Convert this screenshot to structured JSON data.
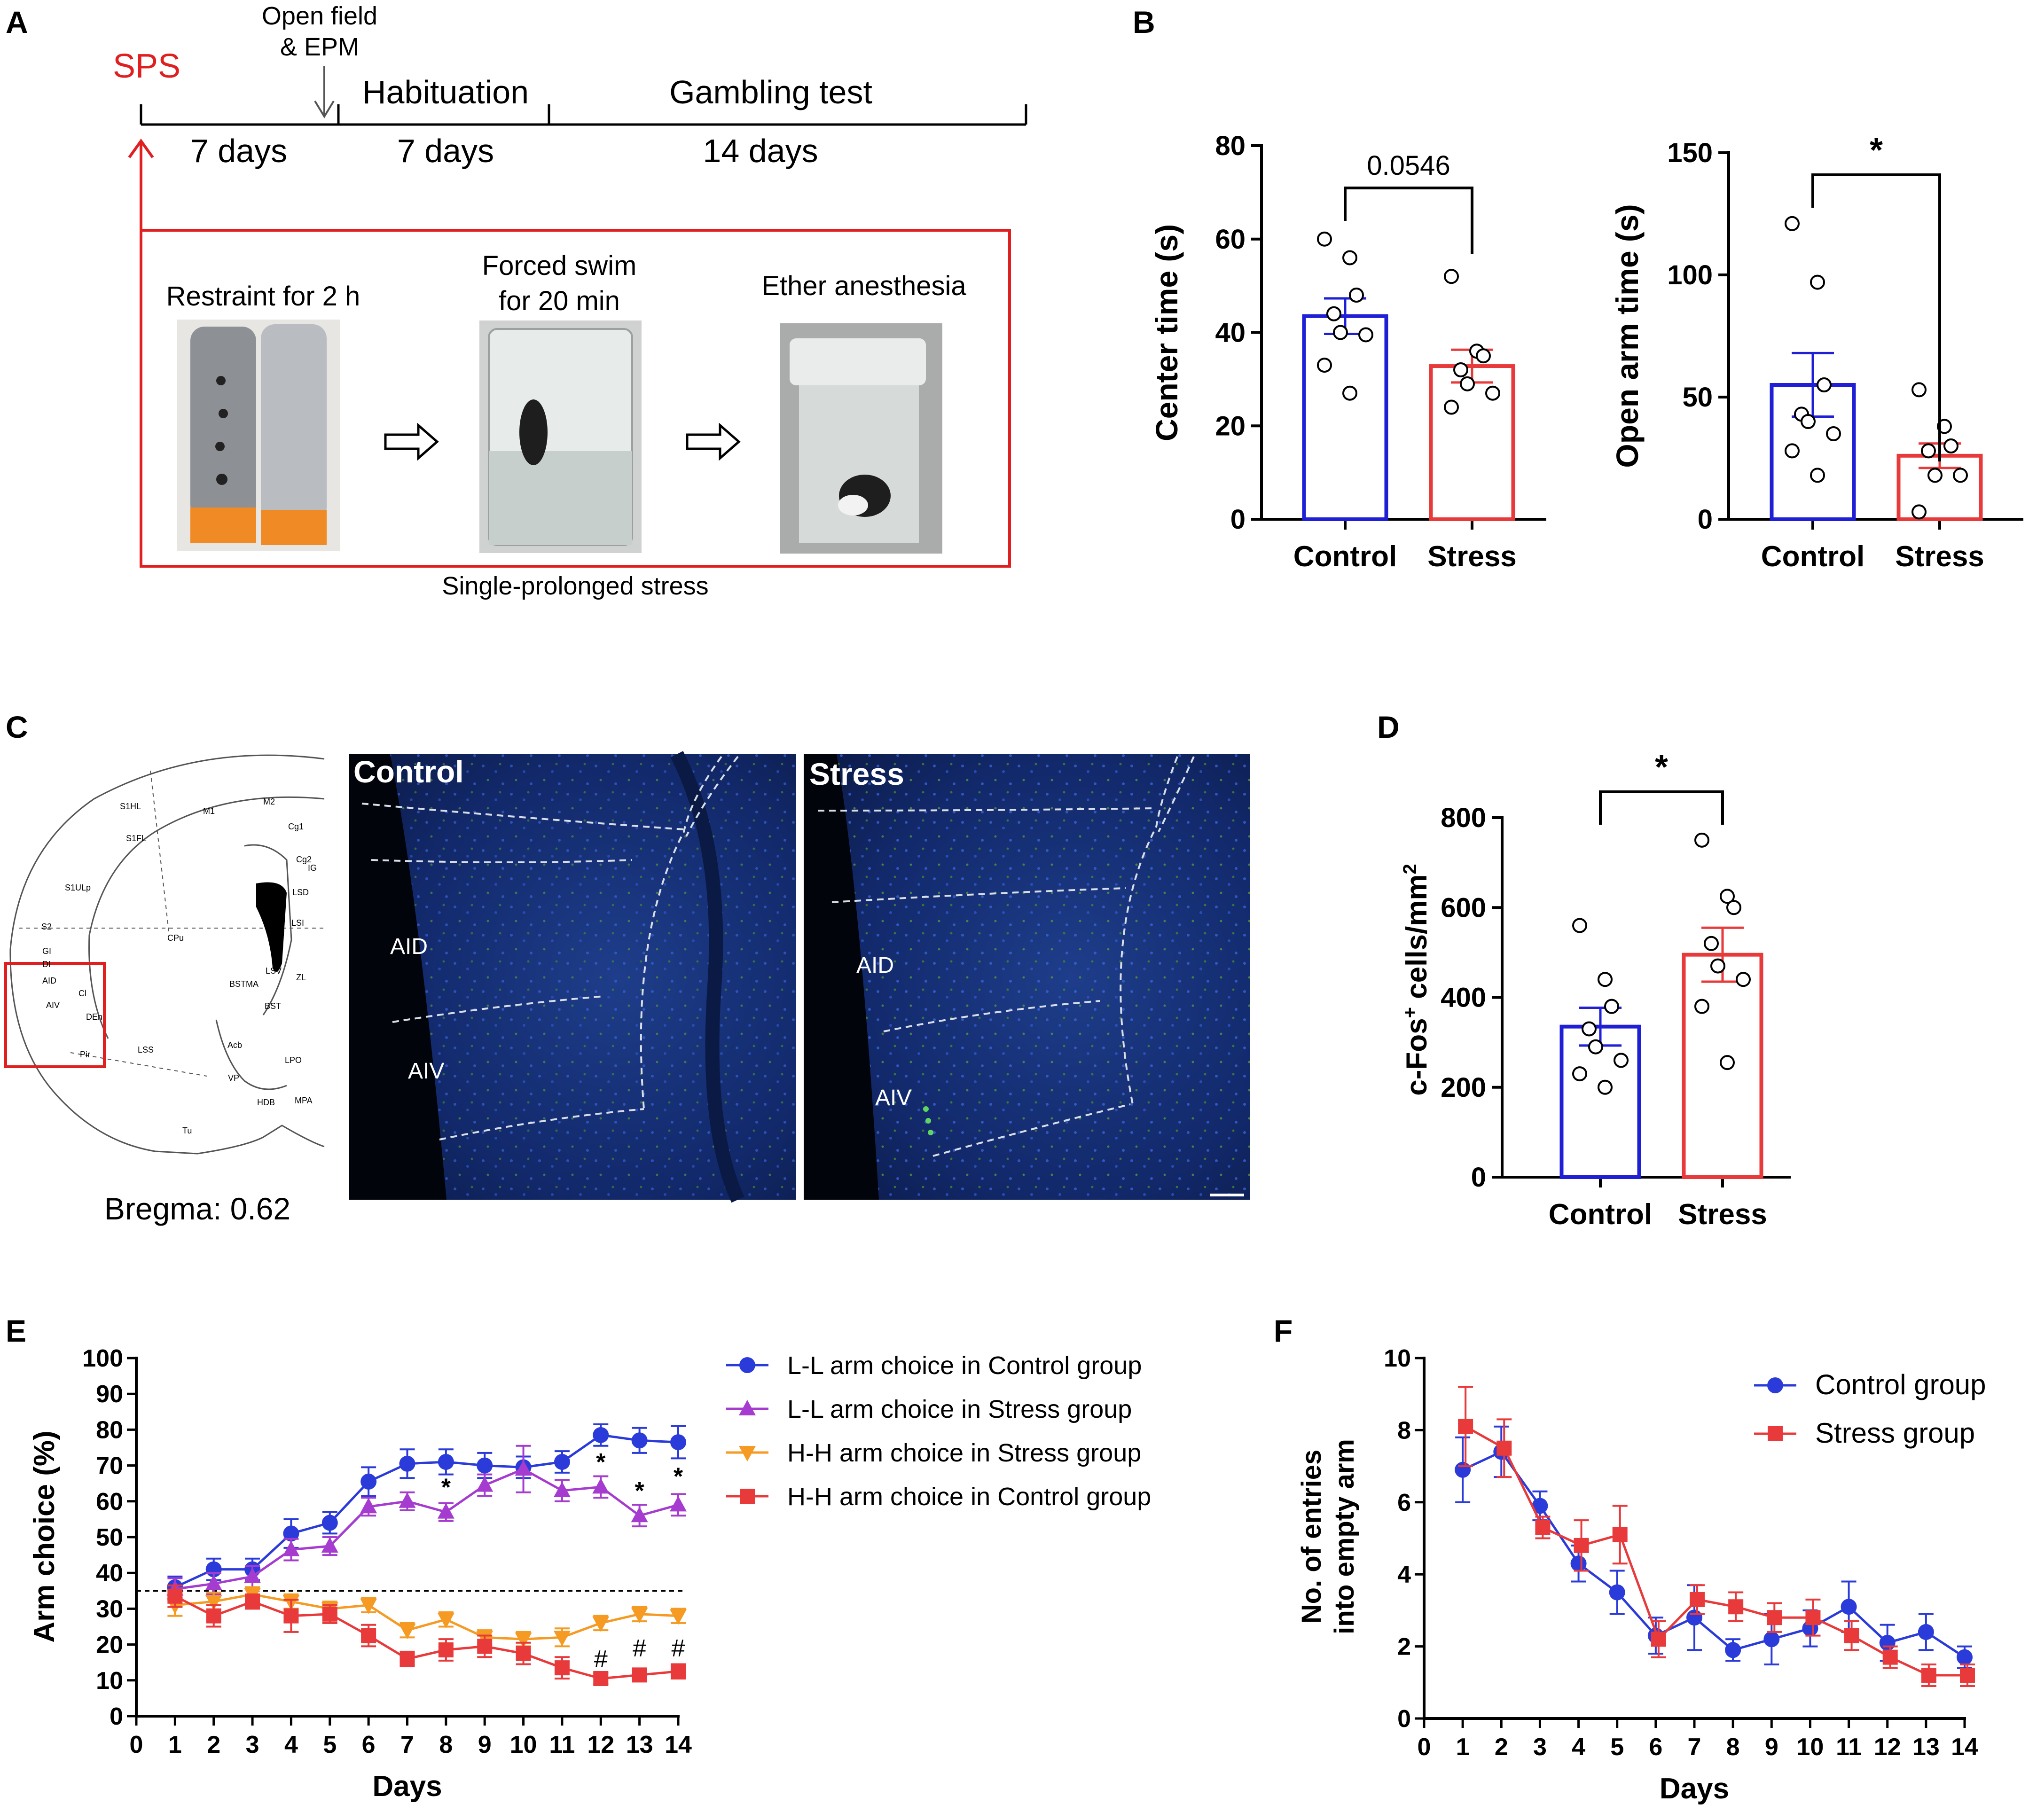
{
  "panels": {
    "a": "A",
    "b": "B",
    "c": "C",
    "d": "D",
    "e": "E",
    "f": "F"
  },
  "colors": {
    "control": "#1f1fd6",
    "stress": "#e83a3a",
    "purple": "#a63ccf",
    "orange": "#f59a22",
    "red_frame": "#e02020"
  },
  "timeline": {
    "sps": "SPS",
    "open_field_line1": "Open field",
    "open_field_line2": "& EPM",
    "habituation": "Habituation",
    "gambling": "Gambling test",
    "days1": "7 days",
    "days2": "7 days",
    "days3": "14 days",
    "step1": "Restraint for 2 h",
    "step2_line1": "Forced swim",
    "step2_line2": "for 20 min",
    "step3": "Ether anesthesia",
    "caption": "Single-prolonged stress"
  },
  "brain_atlas": {
    "bregma": "Bregma: 0.62",
    "labels": [
      "S1HL",
      "M1",
      "M2",
      "Cg1",
      "S1FL",
      "Cg2",
      "IG",
      "S1ULp",
      "LSD",
      "S2",
      "CPu",
      "LSI",
      "GI",
      "DI",
      "AID",
      "Cl",
      "BSTMA",
      "LSV",
      "ZL",
      "AIV",
      "DEn",
      "BST",
      "Pir",
      "LSS",
      "Acb",
      "LPO",
      "VP",
      "HDB",
      "MPA",
      "Tu"
    ]
  },
  "micrographs": {
    "left_title": "Control",
    "right_title": "Stress",
    "left_aid": "AID",
    "left_aiv": "AIV",
    "right_aid": "AID",
    "right_aiv": "AIV"
  },
  "chart_data": [
    {
      "id": "B-center",
      "type": "bar",
      "ylabel": "Center time (s)",
      "categories": [
        "Control",
        "Stress"
      ],
      "values": [
        43.5,
        32.8
      ],
      "sem": [
        3.8,
        3.5
      ],
      "points": [
        [
          60,
          56,
          48,
          44,
          40,
          39.5,
          33,
          27
        ],
        [
          52,
          36,
          35,
          32,
          29,
          27,
          24
        ]
      ],
      "ylim": [
        0,
        80
      ],
      "yticks": [
        "0",
        "20",
        "40",
        "60",
        "80"
      ],
      "significance": "0.0546"
    },
    {
      "id": "B-openarm",
      "type": "bar",
      "ylabel": "Open arm time (s)",
      "categories": [
        "Control",
        "Stress"
      ],
      "values": [
        55,
        26
      ],
      "sem": [
        13,
        5
      ],
      "points": [
        [
          121,
          97,
          55,
          43,
          40,
          35,
          28,
          18
        ],
        [
          53,
          38,
          30,
          28,
          18,
          18,
          3
        ]
      ],
      "ylim": [
        0,
        150
      ],
      "yticks": [
        "0",
        "50",
        "100",
        "150"
      ],
      "significance": "*"
    },
    {
      "id": "D",
      "type": "bar",
      "ylabel_main": "c-Fos",
      "ylabel_sup1": "+",
      "ylabel_mid": " cells/mm",
      "ylabel_sup2": "2",
      "categories": [
        "Control",
        "Stress"
      ],
      "values": [
        335,
        495
      ],
      "sem": [
        42,
        60
      ],
      "points": [
        [
          560,
          440,
          380,
          330,
          290,
          260,
          230,
          200
        ],
        [
          750,
          625,
          600,
          520,
          470,
          440,
          380,
          255
        ]
      ],
      "ylim": [
        0,
        800
      ],
      "yticks": [
        "0",
        "200",
        "400",
        "600",
        "800"
      ],
      "significance": "*"
    },
    {
      "id": "E",
      "type": "line",
      "xlabel": "Days",
      "ylabel": "Arm choice (%)",
      "x": [
        1,
        2,
        3,
        4,
        5,
        6,
        7,
        8,
        9,
        10,
        11,
        12,
        13,
        14
      ],
      "xticks": [
        "0",
        "1",
        "2",
        "3",
        "4",
        "5",
        "6",
        "7",
        "8",
        "9",
        "10",
        "11",
        "12",
        "13",
        "14"
      ],
      "yticks": [
        "0",
        "10",
        "20",
        "30",
        "40",
        "50",
        "60",
        "70",
        "80",
        "90",
        "100"
      ],
      "xlim": [
        0,
        14
      ],
      "ylim": [
        0,
        100
      ],
      "chance_level": 35,
      "series": [
        {
          "name": "L-L arm choice in Control group",
          "color": "#2a3bd9",
          "marker": "circle",
          "values": [
            36,
            41,
            41,
            51,
            54,
            65.5,
            70.5,
            71,
            70,
            69.5,
            71,
            78.5,
            77,
            76.5
          ],
          "err": [
            3,
            3,
            3,
            4,
            3,
            4,
            4,
            3.5,
            3.5,
            3,
            3,
            3,
            3.5,
            4.5
          ]
        },
        {
          "name": "L-L arm choice in Stress group",
          "color": "#a63ccf",
          "marker": "triangle",
          "values": [
            35.5,
            37,
            39,
            46.5,
            47.5,
            58.5,
            60,
            57,
            64.5,
            69,
            63,
            64,
            56,
            59
          ],
          "err": [
            3,
            3,
            3,
            3,
            2.5,
            2.5,
            2.5,
            2.5,
            3,
            6.5,
            3,
            3,
            3,
            3
          ]
        },
        {
          "name": "H-H arm choice in Stress group",
          "color": "#f59a22",
          "marker": "triangle-down",
          "values": [
            31,
            32,
            34,
            32,
            30,
            31,
            24,
            27,
            22,
            21.5,
            22,
            26,
            28.5,
            28
          ],
          "err": [
            3,
            2.5,
            2,
            2,
            2,
            2,
            2,
            2,
            2,
            2,
            2.5,
            2,
            2,
            2
          ]
        },
        {
          "name": "H-H arm choice in Control  group",
          "color": "#e83a3a",
          "marker": "square",
          "values": [
            33.5,
            28,
            32,
            28,
            28.5,
            22.5,
            16,
            18.5,
            19.5,
            17.5,
            13.5,
            10.5,
            11.5,
            12.5
          ],
          "err": [
            3,
            3,
            2,
            4.5,
            2.5,
            3,
            2,
            3,
            3,
            3,
            3,
            1.5,
            1.5,
            2
          ]
        }
      ],
      "annotations": [
        {
          "x": 8,
          "y": 64,
          "text": "*"
        },
        {
          "x": 12,
          "y": 71,
          "text": "*"
        },
        {
          "x": 13,
          "y": 63,
          "text": "*"
        },
        {
          "x": 14,
          "y": 67,
          "text": "*"
        },
        {
          "x": 12,
          "y": 16,
          "text": "#"
        },
        {
          "x": 13,
          "y": 19,
          "text": "#"
        },
        {
          "x": 14,
          "y": 19,
          "text": "#"
        }
      ]
    },
    {
      "id": "F",
      "type": "line",
      "xlabel": "Days",
      "ylabel_line1": "No. of entries",
      "ylabel_line2": "into empty arm",
      "x": [
        1,
        2,
        3,
        4,
        5,
        6,
        7,
        8,
        9,
        10,
        11,
        12,
        13,
        14
      ],
      "xticks": [
        "0",
        "1",
        "2",
        "3",
        "4",
        "5",
        "6",
        "7",
        "8",
        "9",
        "10",
        "11",
        "12",
        "13",
        "14"
      ],
      "yticks": [
        "0",
        "2",
        "4",
        "6",
        "8",
        "10"
      ],
      "xlim": [
        0,
        14
      ],
      "ylim": [
        0,
        10
      ],
      "series": [
        {
          "name": "Control group",
          "color": "#2a3bd9",
          "marker": "circle",
          "values": [
            6.9,
            7.4,
            5.9,
            4.3,
            3.5,
            2.3,
            2.8,
            1.9,
            2.2,
            2.5,
            3.1,
            2.1,
            2.4,
            1.7
          ],
          "err": [
            0.9,
            0.7,
            0.4,
            0.5,
            0.6,
            0.5,
            0.9,
            0.3,
            0.7,
            0.5,
            0.7,
            0.5,
            0.5,
            0.3
          ]
        },
        {
          "name": "Stress group",
          "color": "#e83a3a",
          "marker": "square",
          "values": [
            8.1,
            7.5,
            5.3,
            4.8,
            5.1,
            2.2,
            3.3,
            3.1,
            2.8,
            2.8,
            2.3,
            1.7,
            1.2,
            1.2
          ],
          "err": [
            1.1,
            0.8,
            0.3,
            0.7,
            0.8,
            0.5,
            0.4,
            0.4,
            0.4,
            0.5,
            0.4,
            0.3,
            0.3,
            0.3
          ]
        }
      ]
    }
  ]
}
